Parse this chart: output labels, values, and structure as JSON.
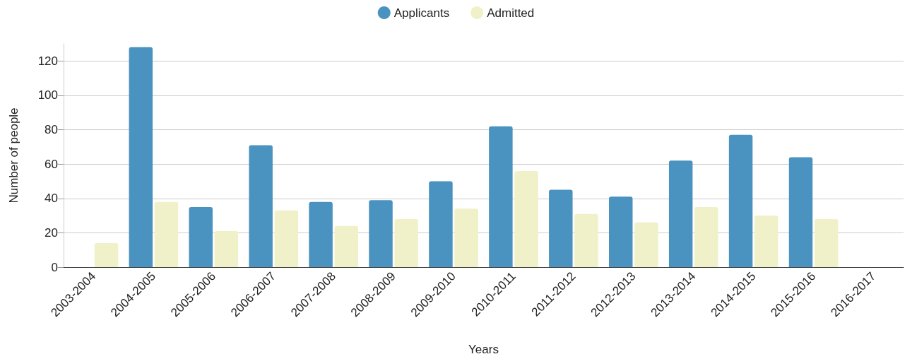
{
  "chart_data": {
    "type": "bar",
    "xlabel": "Years",
    "ylabel": "Number of people",
    "categories": [
      "2003-2004",
      "2004-2005",
      "2005-2006",
      "2006-2007",
      "2007-2008",
      "2008-2009",
      "2009-2010",
      "2010-2011",
      "2011-2012",
      "2012-2013",
      "2013-2014",
      "2014-2015",
      "2015-2016",
      "2016-2017"
    ],
    "series": [
      {
        "name": "Applicants",
        "color": "#4a92bf",
        "values": [
          null,
          128,
          35,
          71,
          38,
          39,
          50,
          82,
          45,
          41,
          62,
          77,
          64,
          null
        ]
      },
      {
        "name": "Admitted",
        "color": "#f0f1c9",
        "values": [
          14,
          38,
          21,
          33,
          24,
          28,
          34,
          56,
          31,
          26,
          35,
          30,
          28,
          null
        ]
      }
    ],
    "ylim": [
      0,
      130
    ],
    "yticks": [
      0,
      20,
      40,
      60,
      80,
      100,
      120
    ],
    "grid": "y",
    "legend": "top"
  }
}
